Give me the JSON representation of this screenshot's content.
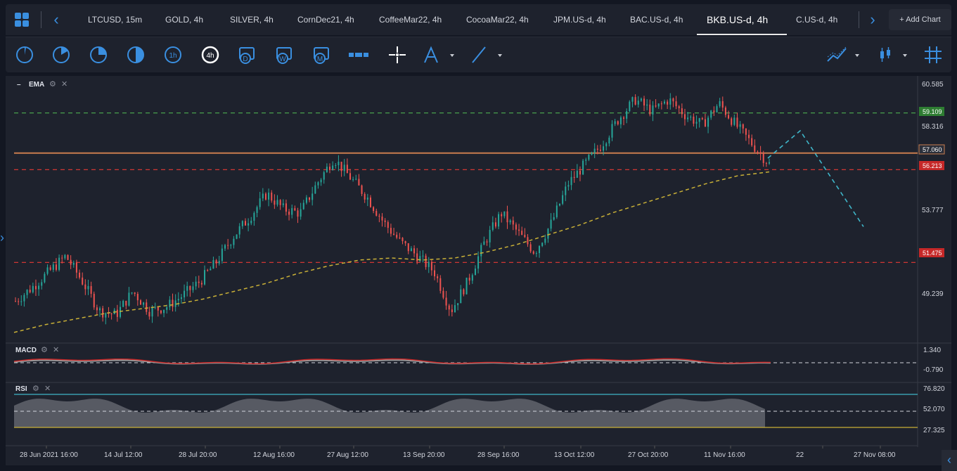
{
  "tabs": [
    {
      "label": "LTCUSD, 15m"
    },
    {
      "label": "GOLD, 4h"
    },
    {
      "label": "SILVER, 4h"
    },
    {
      "label": "CornDec21, 4h"
    },
    {
      "label": "CoffeeMar22, 4h"
    },
    {
      "label": "CocoaMar22, 4h"
    },
    {
      "label": "JPM.US-d, 4h"
    },
    {
      "label": "BAC.US-d, 4h"
    },
    {
      "label": "BKB.US-d, 4h"
    },
    {
      "label": "C.US-d, 4h"
    }
  ],
  "active_tab": "BKB.US-d, 4h",
  "add_chart_label": "+ Add Chart",
  "toolbar": {
    "timeframes": [
      "1m",
      "5m",
      "15m",
      "30m",
      "1h",
      "4h",
      "D",
      "W",
      "M"
    ],
    "active_timeframe": "4h"
  },
  "colors": {
    "accent": "#3a8fe0",
    "bull": "#26a69a",
    "bear": "#ef5350",
    "ema": "#c9b037",
    "support_green": "#4caf50",
    "resist_red": "#e53935",
    "hline": "#c97d4e",
    "projection": "#3fb6c9",
    "rsi_band": "#3fb6c9"
  },
  "panes": {
    "main": {
      "indicator": "EMA"
    },
    "macd": {
      "indicator": "MACD",
      "scale": [
        "1.340",
        "-0.790"
      ]
    },
    "rsi": {
      "indicator": "RSI",
      "scale": [
        "76.820",
        "52.070",
        "27.325"
      ]
    }
  },
  "chart_data": {
    "type": "candlestick",
    "symbol": "BKB.US-d, 4h",
    "y_axis_ticks": [
      "60.585",
      "58.316",
      "53.777",
      "49.239"
    ],
    "y_range": [
      47.5,
      61.0
    ],
    "price_lines": [
      {
        "value": "59.109",
        "color": "green",
        "style": "dashed"
      },
      {
        "value": "57.060",
        "color": "orange",
        "style": "solid"
      },
      {
        "value": "56.213",
        "color": "red",
        "style": "dashed"
      },
      {
        "value": "51.475",
        "color": "red",
        "style": "dashed"
      }
    ],
    "x_axis_labels": [
      "28 Jun 2021 16:00",
      "14 Jul 12:00",
      "28 Jul 20:00",
      "12 Aug 16:00",
      "27 Aug 12:00",
      "13 Sep 20:00",
      "28 Sep 16:00",
      "13 Oct 12:00",
      "27 Oct 20:00",
      "11 Nov 16:00",
      "22",
      "27 Nov 08:00"
    ],
    "close_path": [
      49.5,
      50.2,
      51.0,
      51.8,
      50.5,
      49.0,
      48.8,
      50.0,
      49.0,
      49.2,
      49.8,
      50.5,
      51.5,
      52.8,
      53.8,
      55.0,
      54.2,
      54.0,
      55.5,
      56.8,
      55.8,
      54.8,
      53.5,
      52.5,
      51.8,
      51.0,
      49.0,
      50.5,
      52.5,
      54.0,
      53.0,
      52.0,
      53.5,
      55.5,
      56.5,
      57.5,
      58.8,
      59.8,
      59.2,
      59.8,
      59.0,
      58.5,
      59.6,
      58.5,
      57.5,
      56.5
    ],
    "ema_path": [
      47.9,
      48.3,
      48.6,
      48.9,
      49.1,
      49.3,
      49.6,
      50.0,
      50.4,
      50.9,
      51.3,
      51.6,
      51.7,
      51.6,
      51.7,
      52.0,
      52.4,
      52.9,
      53.4,
      54.0,
      54.5,
      55.0,
      55.5,
      55.9,
      56.1
    ],
    "projection": [
      56.8,
      58.2,
      53.3
    ]
  }
}
